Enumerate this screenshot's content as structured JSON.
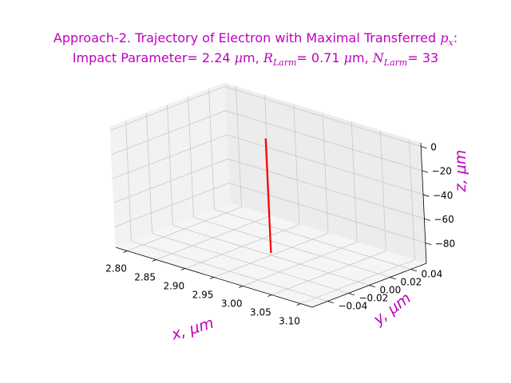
{
  "chart_data": {
    "type": "line",
    "projection": "3d",
    "title": {
      "line1_prefix": "Approach-2. Trajectory of Electron with Maximal Transferred ",
      "line1_var": "p",
      "line1_sub": "x",
      "line1_suffix": ":",
      "line2_a": "Impact Parameter= 2.24 ",
      "line2_mu": "μ",
      "line2_b": "m, ",
      "line2_R": "R",
      "line2_R_sub": "Larm",
      "line2_c": "= 0.71 ",
      "line2_mu2": "μ",
      "line2_d": "m, ",
      "line2_N": "N",
      "line2_N_sub": "Larm",
      "line2_e": "= 33"
    },
    "xlabel": "x, μm",
    "ylabel": "y, μm",
    "zlabel": "z, μm",
    "xlim": [
      2.78,
      3.12
    ],
    "ylim": [
      -0.055,
      0.055
    ],
    "zlim": [
      -97,
      3
    ],
    "xticks": [
      2.8,
      2.85,
      2.9,
      2.95,
      3.0,
      3.05,
      3.1
    ],
    "xtick_labels": [
      "2.80",
      "2.85",
      "2.90",
      "2.95",
      "3.00",
      "3.05",
      "3.10"
    ],
    "yticks": [
      -0.04,
      -0.02,
      0.0,
      0.02,
      0.04
    ],
    "ytick_labels": [
      "−0.04",
      "−0.02",
      "0.00",
      "0.02",
      "0.04"
    ],
    "zticks": [
      -80,
      -60,
      -40,
      -20,
      0
    ],
    "ztick_labels": [
      "−80",
      "−60",
      "−40",
      "−20",
      "0"
    ],
    "grid": true,
    "series": [
      {
        "color": "#ff0000",
        "x": [
          2.95,
          2.95
        ],
        "y": [
          0.0,
          0.0
        ],
        "z": [
          0,
          -95
        ]
      }
    ],
    "colors": {
      "title": "#bf00bf",
      "labels": "#bf00bf",
      "line": "#ff0000"
    }
  }
}
